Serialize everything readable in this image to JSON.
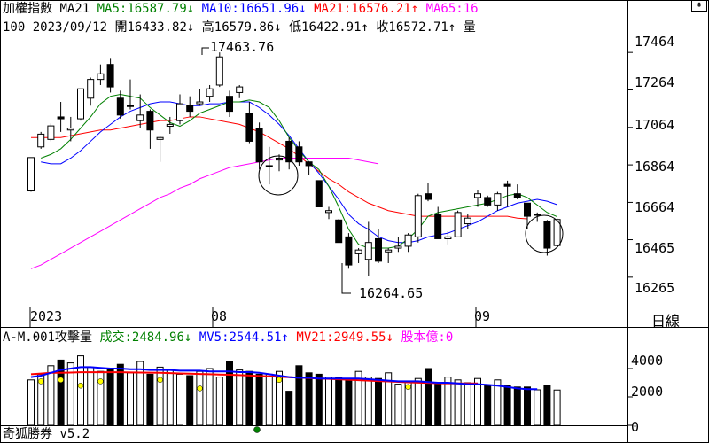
{
  "header": {
    "index_name": "加權指數",
    "indicator_label": "MA21",
    "ma5": {
      "label": "MA5:",
      "value": "16587.79",
      "arrow": "↓",
      "color": "#008000"
    },
    "ma10": {
      "label": "MA10:",
      "value": "16651.96",
      "arrow": "↓",
      "color": "#0000ff"
    },
    "ma21": {
      "label": "MA21:",
      "value": "16576.21",
      "arrow": "↑",
      "color": "#ff0000"
    },
    "ma65": {
      "label": "MA65:16",
      "color": "#ff00ff"
    },
    "scroll_icon": "double-up-arrow-icon",
    "quote": {
      "count": "100",
      "date": "2023/09/12",
      "open": "開16433.82",
      "open_arrow": "↓",
      "high": "高16579.86",
      "high_arrow": "↓",
      "low": "低16422.91",
      "low_arrow": "↑",
      "close": "收16572.71",
      "close_arrow": "↑",
      "volume": "量"
    }
  },
  "price_axis": [
    "17464",
    "17264",
    "17064",
    "16864",
    "16664",
    "16465",
    "16265"
  ],
  "annotations": {
    "high_label": "17463.76",
    "low_label": "16264.65"
  },
  "date_axis": [
    "2023",
    "08",
    "09"
  ],
  "period_button": "日線",
  "volume_panel": {
    "title": "A-M.001攻擊量",
    "deal": {
      "label": "成交:",
      "value": "2484.96",
      "arrow": "↓",
      "color": "#008000"
    },
    "mv5": {
      "label": "MV5:",
      "value": "2544.51",
      "arrow": "↑",
      "color": "#0000ff"
    },
    "mv21": {
      "label": "MV21:",
      "value": "2949.55",
      "arrow": "↓",
      "color": "#ff0000"
    },
    "shares": {
      "label": "股本億:",
      "value": "0",
      "color": "#ff00ff"
    },
    "axis": [
      "4000",
      "2000",
      "0"
    ]
  },
  "footer": {
    "app_name": "奇狐勝券 v5.2"
  },
  "chart_data": {
    "type": "candlestick",
    "price_range": [
      16165,
      17564
    ],
    "candles": [
      [
        16725,
        16903,
        16721,
        16903
      ],
      [
        16960,
        17040,
        16950,
        17028
      ],
      [
        17000,
        17085,
        16990,
        17072
      ],
      [
        17120,
        17200,
        17040,
        17110
      ],
      [
        17050,
        17120,
        16990,
        17060
      ],
      [
        17110,
        17270,
        17100,
        17270
      ],
      [
        17220,
        17330,
        17180,
        17320
      ],
      [
        17320,
        17400,
        17290,
        17350
      ],
      [
        17400,
        17430,
        17250,
        17280
      ],
      [
        17220,
        17260,
        17110,
        17130
      ],
      [
        17180,
        17320,
        17160,
        17180
      ],
      [
        17100,
        17240,
        17060,
        17130
      ],
      [
        17150,
        17160,
        16950,
        17050
      ],
      [
        17000,
        17020,
        16880,
        17010
      ],
      [
        17070,
        17120,
        17030,
        17080
      ],
      [
        17100,
        17240,
        17080,
        17190
      ],
      [
        17180,
        17230,
        17120,
        17150
      ],
      [
        17190,
        17270,
        17180,
        17200
      ],
      [
        17230,
        17290,
        17200,
        17270
      ],
      [
        17290,
        17464,
        17280,
        17440
      ],
      [
        17230,
        17260,
        17120,
        17150
      ],
      [
        17250,
        17290,
        17220,
        17280
      ],
      [
        17140,
        17200,
        16980,
        16990
      ],
      [
        17060,
        17090,
        16840,
        16880
      ],
      [
        16860,
        16960,
        16760,
        16860
      ],
      [
        16890,
        16920,
        16830,
        16900
      ],
      [
        16990,
        17010,
        16840,
        16880
      ],
      [
        16960,
        16990,
        16860,
        16880
      ],
      [
        16880,
        16880,
        16810,
        16860
      ],
      [
        16780,
        16780,
        16640,
        16640
      ],
      [
        16610,
        16640,
        16575,
        16620
      ],
      [
        16570,
        16575,
        16450,
        16450
      ],
      [
        16480,
        16500,
        16310,
        16330
      ],
      [
        16390,
        16420,
        16340,
        16410
      ],
      [
        16360,
        16560,
        16270,
        16450
      ],
      [
        16470,
        16520,
        16340,
        16350
      ],
      [
        16400,
        16420,
        16340,
        16410
      ],
      [
        16420,
        16480,
        16400,
        16430
      ],
      [
        16430,
        16500,
        16400,
        16490
      ],
      [
        16480,
        16710,
        16450,
        16700
      ],
      [
        16710,
        16770,
        16670,
        16680
      ],
      [
        16600,
        16640,
        16480,
        16470
      ],
      [
        16470,
        16510,
        16440,
        16480
      ],
      [
        16480,
        16620,
        16480,
        16610
      ],
      [
        16550,
        16600,
        16520,
        16580
      ],
      [
        16690,
        16730,
        16640,
        16710
      ],
      [
        16690,
        16700,
        16640,
        16650
      ],
      [
        16650,
        16720,
        16620,
        16710
      ],
      [
        16760,
        16780,
        16640,
        16750
      ],
      [
        16710,
        16760,
        16680,
        16690
      ],
      [
        16660,
        16660,
        16520,
        16590
      ],
      [
        16600,
        16610,
        16560,
        16600
      ],
      [
        16560,
        16570,
        16380,
        16420
      ],
      [
        16433.82,
        16579.86,
        16422.91,
        16572.71
      ]
    ],
    "ma5": [
      16900,
      16920,
      16950,
      17000,
      17060,
      17120,
      17190,
      17230,
      17240,
      17230,
      17220,
      17170,
      17130,
      17090,
      17070,
      17100,
      17140,
      17160,
      17180,
      17200,
      17200,
      17210,
      17200,
      17170,
      17100,
      17010,
      16940,
      16880,
      16840,
      16750,
      16640,
      16520,
      16440,
      16420,
      16420,
      16420,
      16430,
      16470,
      16520,
      16590,
      16610,
      16620,
      16630,
      16640,
      16650,
      16660,
      16680,
      16700,
      16710,
      16690,
      16650,
      16610,
      16587.79
    ],
    "ma10": [
      16880,
      16870,
      16870,
      16900,
      16940,
      16990,
      17040,
      17080,
      17120,
      17150,
      17170,
      17190,
      17200,
      17200,
      17190,
      17180,
      17180,
      17190,
      17190,
      17200,
      17200,
      17200,
      17170,
      17130,
      17080,
      17020,
      16950,
      16880,
      16820,
      16750,
      16680,
      16600,
      16550,
      16520,
      16480,
      16460,
      16450,
      16450,
      16460,
      16480,
      16490,
      16500,
      16520,
      16540,
      16560,
      16590,
      16620,
      16640,
      16660,
      16670,
      16680,
      16670,
      16651.96
    ],
    "ma21": [
      17010,
      17010,
      17010,
      17010,
      17020,
      17030,
      17040,
      17050,
      17050,
      17060,
      17070,
      17080,
      17090,
      17100,
      17100,
      17110,
      17120,
      17120,
      17110,
      17100,
      17090,
      17080,
      17060,
      17040,
      17010,
      16980,
      16950,
      16910,
      16870,
      16830,
      16790,
      16760,
      16720,
      16690,
      16660,
      16640,
      16620,
      16610,
      16600,
      16590,
      16590,
      16590,
      16590,
      16590,
      16590,
      16590,
      16590,
      16590,
      16590,
      16580,
      16576.21
    ],
    "ma65": [
      16310,
      16330,
      16360,
      16390,
      16420,
      16450,
      16480,
      16510,
      16540,
      16570,
      16600,
      16630,
      16660,
      16690,
      16710,
      16740,
      16760,
      16790,
      16810,
      16830,
      16850,
      16860,
      16870,
      16880,
      16890,
      16900,
      16900,
      16900,
      16900,
      16900,
      16900,
      16900,
      16900,
      16890,
      16880,
      16870
    ],
    "volume_range": [
      0,
      5500
    ],
    "volumes": [
      3200,
      3600,
      4200,
      4600,
      4400,
      4900,
      4100,
      3800,
      4000,
      4300,
      3700,
      4500,
      3600,
      4100,
      3900,
      3600,
      3500,
      3800,
      4000,
      3400,
      4500,
      3900,
      3800,
      3600,
      3600,
      3800,
      2400,
      4200,
      3700,
      3600,
      3400,
      3400,
      3300,
      3800,
      3400,
      3300,
      3700,
      2900,
      3100,
      3300,
      4000,
      2900,
      3400,
      3200,
      3000,
      3300,
      2800,
      3200,
      2800,
      2700,
      2700,
      2500,
      2800,
      2484.96
    ],
    "mv5": [
      3400,
      3500,
      3700,
      3900,
      4000,
      4100,
      4100,
      4050,
      4000,
      4000,
      3950,
      3950,
      3900,
      3900,
      3900,
      3850,
      3850,
      3850,
      3800,
      3800,
      3800,
      3750,
      3750,
      3700,
      3600,
      3500,
      3400,
      3350,
      3350,
      3300,
      3300,
      3300,
      3300,
      3300,
      3250,
      3200,
      3150,
      3100,
      3100,
      3100,
      3050,
      3000,
      3000,
      2950,
      2900,
      2900,
      2850,
      2800,
      2700,
      2600,
      2550,
      2544.51
    ],
    "mv21": [
      3600,
      3650,
      3700,
      3700,
      3720,
      3740,
      3740,
      3740,
      3740,
      3740,
      3730,
      3720,
      3710,
      3700,
      3680,
      3660,
      3640,
      3620,
      3600,
      3580,
      3560,
      3540,
      3510,
      3480,
      3450,
      3420,
      3390,
      3360,
      3330,
      3300,
      3270,
      3240,
      3210,
      3180,
      3150,
      3120,
      3090,
      3060,
      3030,
      3010,
      2990,
      2970,
      2960,
      2955,
      2950,
      2949.55
    ],
    "high_marker": 17463.76,
    "low_marker": 16264.65
  }
}
